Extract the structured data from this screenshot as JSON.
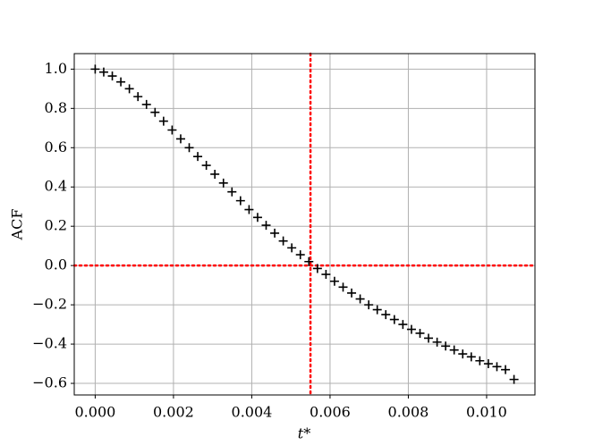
{
  "chart_data": {
    "type": "scatter",
    "xlabel": "t*",
    "ylabel": "ACF",
    "marker": "+",
    "color": "#000000",
    "grid": true,
    "x": [
      0,
      0.000218,
      0.000437,
      0.000655,
      0.000873,
      0.001092,
      0.00131,
      0.001529,
      0.001747,
      0.001965,
      0.002184,
      0.002402,
      0.00262,
      0.002839,
      0.003057,
      0.003276,
      0.003494,
      0.003712,
      0.003931,
      0.004149,
      0.004367,
      0.004586,
      0.004804,
      0.005022,
      0.005241,
      0.005459,
      0.005678,
      0.005896,
      0.006114,
      0.006333,
      0.006551,
      0.006769,
      0.006988,
      0.007206,
      0.007424,
      0.007643,
      0.007861,
      0.00808,
      0.008298,
      0.008516,
      0.008735,
      0.008953,
      0.009171,
      0.00939,
      0.009608,
      0.009826,
      0.010045,
      0.010263,
      0.010482,
      0.0107
    ],
    "values": [
      1.0,
      0.985,
      0.965,
      0.935,
      0.9,
      0.86,
      0.82,
      0.78,
      0.735,
      0.69,
      0.645,
      0.6,
      0.555,
      0.51,
      0.465,
      0.42,
      0.375,
      0.33,
      0.285,
      0.245,
      0.205,
      0.165,
      0.125,
      0.09,
      0.055,
      0.02,
      -0.015,
      -0.045,
      -0.08,
      -0.11,
      -0.14,
      -0.17,
      -0.2,
      -0.225,
      -0.25,
      -0.275,
      -0.3,
      -0.325,
      -0.345,
      -0.37,
      -0.39,
      -0.41,
      -0.43,
      -0.45,
      -0.465,
      -0.485,
      -0.5,
      -0.515,
      -0.53,
      -0.58
    ],
    "reference_lines": {
      "color": "#ff0000",
      "x": 0.0055,
      "y": 0
    },
    "xlim": [
      -0.000535,
      0.011235
    ],
    "ylim": [
      -0.659,
      1.079
    ],
    "xticks": [
      {
        "value": 0,
        "label": "0.000"
      },
      {
        "value": 0.002,
        "label": "0.002"
      },
      {
        "value": 0.004,
        "label": "0.004"
      },
      {
        "value": 0.006,
        "label": "0.006"
      },
      {
        "value": 0.008,
        "label": "0.008"
      },
      {
        "value": 0.01,
        "label": "0.010"
      }
    ],
    "yticks": [
      {
        "value": -0.6,
        "label": "−0.6"
      },
      {
        "value": -0.4,
        "label": "−0.4"
      },
      {
        "value": -0.2,
        "label": "−0.2"
      },
      {
        "value": 0,
        "label": "0.0"
      },
      {
        "value": 0.2,
        "label": "0.2"
      },
      {
        "value": 0.4,
        "label": "0.4"
      },
      {
        "value": 0.6,
        "label": "0.6"
      },
      {
        "value": 0.8,
        "label": "0.8"
      },
      {
        "value": 1.0,
        "label": "1.0"
      }
    ]
  }
}
